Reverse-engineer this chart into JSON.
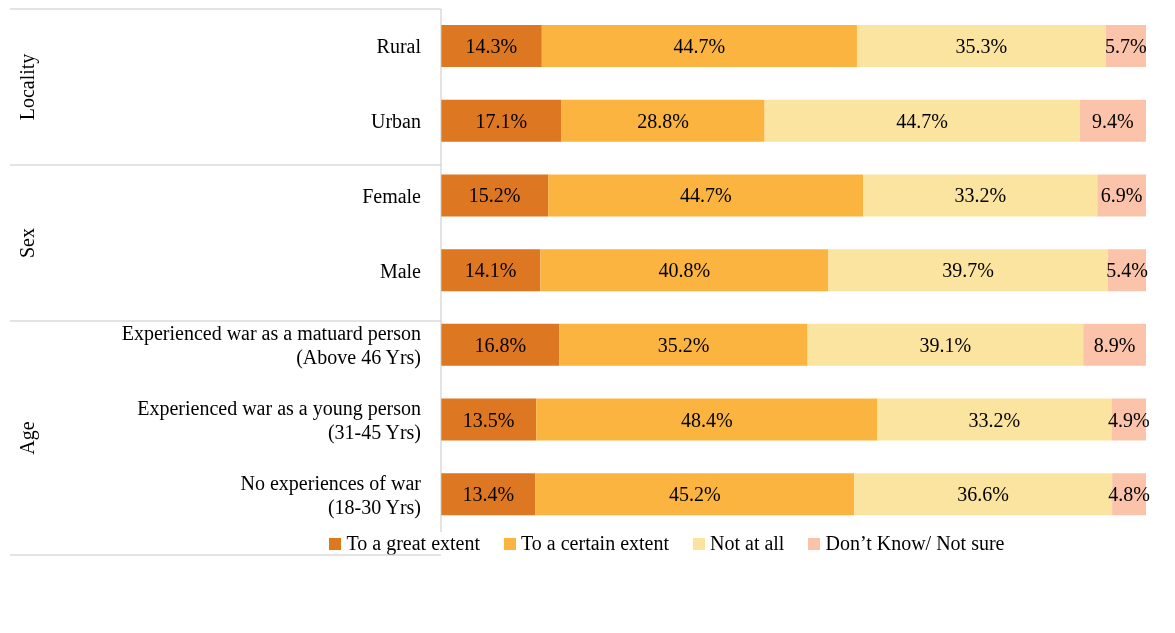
{
  "chart_data": {
    "type": "bar",
    "orientation": "horizontal",
    "stacked": true,
    "categories": [
      "Rural",
      "Urban",
      "Female",
      "Male",
      "Experienced war as a matuard person\n(Above 46 Yrs)",
      "Experienced war as a young person\n(31-45 Yrs)",
      "No experiences of war\n(18-30 Yrs)"
    ],
    "annotations": [
      "Locality",
      "Sex",
      "Age"
    ],
    "legend": "bottom",
    "series": [
      {
        "name": "To a great extent",
        "color": "#dd7722",
        "values": [
          14.3,
          17.1,
          15.2,
          14.1,
          16.8,
          13.5,
          13.4
        ],
        "value_labels": [
          "14.3%",
          "17.1%",
          "15.2%",
          "14.1%",
          "16.8%",
          "13.5%",
          "13.4%"
        ]
      },
      {
        "name": "To a certain extent",
        "color": "#fbb440",
        "values": [
          44.7,
          28.8,
          44.7,
          40.8,
          35.2,
          48.4,
          45.2
        ],
        "value_labels": [
          "44.7%",
          "28.8%",
          "44.7%",
          "40.8%",
          "35.2%",
          "48.4%",
          "45.2%"
        ]
      },
      {
        "name": "Not at all",
        "color": "#fbe3a0",
        "values": [
          35.3,
          44.7,
          33.2,
          39.7,
          39.1,
          33.2,
          36.6
        ],
        "value_labels": [
          "35.3%",
          "44.7%",
          "33.2%",
          "39.7%",
          "39.1%",
          "33.2%",
          "36.6%"
        ]
      },
      {
        "name": "Don’t Know/ Not sure",
        "color": "#fbc3aa",
        "values": [
          5.7,
          9.4,
          6.9,
          5.4,
          8.9,
          4.9,
          4.8
        ],
        "value_labels": [
          "5.7%",
          "9.4%",
          "6.9%",
          "5.4%",
          "8.9%",
          "4.9%",
          "4.8%"
        ]
      }
    ]
  }
}
